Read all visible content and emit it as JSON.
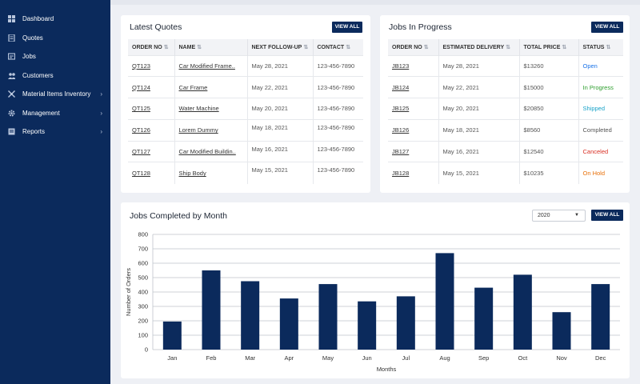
{
  "sidebar": {
    "items": [
      {
        "label": "Dashboard",
        "icon": "dashboard-icon",
        "chevron": false
      },
      {
        "label": "Quotes",
        "icon": "quotes-icon",
        "chevron": false
      },
      {
        "label": "Jobs",
        "icon": "jobs-icon",
        "chevron": false
      },
      {
        "label": "Customers",
        "icon": "customers-icon",
        "chevron": false
      },
      {
        "label": "Material Items Inventory",
        "icon": "inventory-icon",
        "chevron": true
      },
      {
        "label": "Management",
        "icon": "gear-icon",
        "chevron": true
      },
      {
        "label": "Reports",
        "icon": "reports-icon",
        "chevron": true
      }
    ]
  },
  "quotes": {
    "title": "Latest Quotes",
    "view_all": "VIEW ALL",
    "columns": [
      "ORDER NO",
      "NAME",
      "NEXT FOLLOW-UP",
      "CONTACT"
    ],
    "rows": [
      [
        "QT123",
        "Car Modified Frame..",
        "May 28, 2021",
        "123-456-7890"
      ],
      [
        "QT124",
        "Car Frame",
        "May 22, 2021",
        "123-456-7890"
      ],
      [
        "QT125",
        "Water Machine",
        "May 20, 2021",
        "123-456-7890"
      ],
      [
        "QT126",
        "Lorem Dummy",
        "May 18, 2021",
        "123-456-7890"
      ],
      [
        "QT127",
        "Car Modified Buildin..",
        "May 16, 2021",
        "123-456-7890"
      ],
      [
        "QT128",
        "Ship Body",
        "May 15, 2021",
        "123-456-7890"
      ]
    ]
  },
  "jobs": {
    "title": "Jobs In Progress",
    "view_all": "VIEW ALL",
    "columns": [
      "ORDER NO",
      "ESTIMATED DELIVERY",
      "TOTAL PRICE",
      "STATUS"
    ],
    "rows": [
      [
        "JB123",
        "May 28, 2021",
        "$13260",
        "Open"
      ],
      [
        "JB124",
        "May 22, 2021",
        "$15000",
        "In Progress"
      ],
      [
        "JB125",
        "May 20, 2021",
        "$20850",
        "Shipped"
      ],
      [
        "JB126",
        "May 18, 2021",
        "$8560",
        "Completed"
      ],
      [
        "JB127",
        "May 16, 2021",
        "$12540",
        "Canceled"
      ],
      [
        "JB128",
        "May 15, 2021",
        "$10235",
        "On Hold"
      ]
    ],
    "status_colors": {
      "Open": "#1a73e8",
      "In Progress": "#2e9e2e",
      "Shipped": "#17a2c8",
      "Completed": "#555555",
      "Canceled": "#d93025",
      "On Hold": "#e8710a"
    }
  },
  "chart_card": {
    "title": "Jobs Completed by Month",
    "year_select": "2020",
    "view_all": "VIEW ALL"
  },
  "chart_data": {
    "type": "bar",
    "categories": [
      "Jan",
      "Feb",
      "Mar",
      "Apr",
      "May",
      "Jun",
      "Jul",
      "Aug",
      "Sep",
      "Oct",
      "Nov",
      "Dec"
    ],
    "values": [
      195,
      550,
      475,
      355,
      455,
      335,
      370,
      670,
      430,
      520,
      260,
      455
    ],
    "xlabel": "Months",
    "ylabel": "Number of Orders",
    "ylim": [
      0,
      800
    ],
    "yticks": [
      0,
      100,
      200,
      300,
      400,
      500,
      600,
      700,
      800
    ],
    "grid": true,
    "bar_color": "#0b2a5c"
  },
  "colors": {
    "brand": "#0b2a5c"
  }
}
